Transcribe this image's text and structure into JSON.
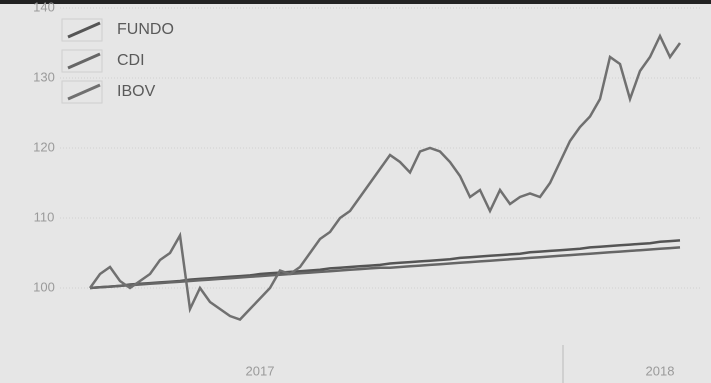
{
  "chart_data": {
    "type": "line",
    "categories": [
      null,
      null,
      null,
      null,
      null,
      null,
      null,
      null,
      null,
      null,
      null,
      null,
      null,
      null,
      null,
      null,
      null,
      "2017",
      null,
      null,
      null,
      null,
      null,
      null,
      null,
      null,
      null,
      null,
      null,
      null,
      null,
      null,
      null,
      null,
      null,
      null,
      null,
      null,
      null,
      null,
      null,
      null,
      null,
      null,
      null,
      null,
      null,
      null,
      null,
      null,
      null,
      null,
      null,
      null,
      null,
      null,
      null,
      "2018",
      null,
      null
    ],
    "series": [
      {
        "name": "FUNDO",
        "color": "#555555",
        "values": [
          100,
          100.1,
          100.2,
          100.3,
          100.5,
          100.6,
          100.7,
          100.8,
          100.9,
          101,
          101.2,
          101.3,
          101.4,
          101.5,
          101.6,
          101.7,
          101.8,
          102,
          102.1,
          102.2,
          102.3,
          102.4,
          102.5,
          102.6,
          102.8,
          102.9,
          103,
          103.1,
          103.2,
          103.3,
          103.5,
          103.6,
          103.7,
          103.8,
          103.9,
          104,
          104.1,
          104.3,
          104.4,
          104.5,
          104.6,
          104.7,
          104.8,
          104.9,
          105.1,
          105.2,
          105.3,
          105.4,
          105.5,
          105.6,
          105.8,
          105.9,
          106,
          106.1,
          106.2,
          106.3,
          106.4,
          106.6,
          106.7,
          106.8
        ]
      },
      {
        "name": "CDI",
        "color": "#666666",
        "values": [
          100,
          100.1,
          100.2,
          100.3,
          100.4,
          100.5,
          100.6,
          100.7,
          100.8,
          100.9,
          101,
          101.1,
          101.2,
          101.3,
          101.4,
          101.5,
          101.6,
          101.7,
          101.8,
          101.9,
          102,
          102.1,
          102.2,
          102.3,
          102.4,
          102.5,
          102.6,
          102.7,
          102.8,
          102.9,
          102.9,
          103,
          103.1,
          103.2,
          103.3,
          103.4,
          103.5,
          103.6,
          103.7,
          103.8,
          103.9,
          104,
          104.1,
          104.2,
          104.3,
          104.4,
          104.5,
          104.6,
          104.7,
          104.8,
          104.9,
          105,
          105.1,
          105.2,
          105.3,
          105.4,
          105.5,
          105.6,
          105.7,
          105.8
        ]
      },
      {
        "name": "IBOV",
        "color": "#707070",
        "values": [
          100,
          102,
          103,
          101,
          100,
          101,
          102,
          104,
          105,
          107.5,
          97,
          100,
          98,
          97,
          96,
          95.5,
          97,
          98.5,
          100,
          102.5,
          102,
          103,
          105,
          107,
          108,
          110,
          111,
          113,
          115,
          117,
          119,
          118,
          116.5,
          119.5,
          120,
          119.5,
          118,
          116,
          113,
          114,
          111,
          114,
          112,
          113,
          113.5,
          113,
          115,
          118,
          121,
          123,
          124.5,
          127,
          133,
          132,
          127,
          131,
          133,
          136,
          133,
          135
        ]
      }
    ],
    "ylim": [
      94,
      140
    ],
    "yticks": [
      100,
      110,
      120,
      130,
      140
    ],
    "grid": true
  }
}
